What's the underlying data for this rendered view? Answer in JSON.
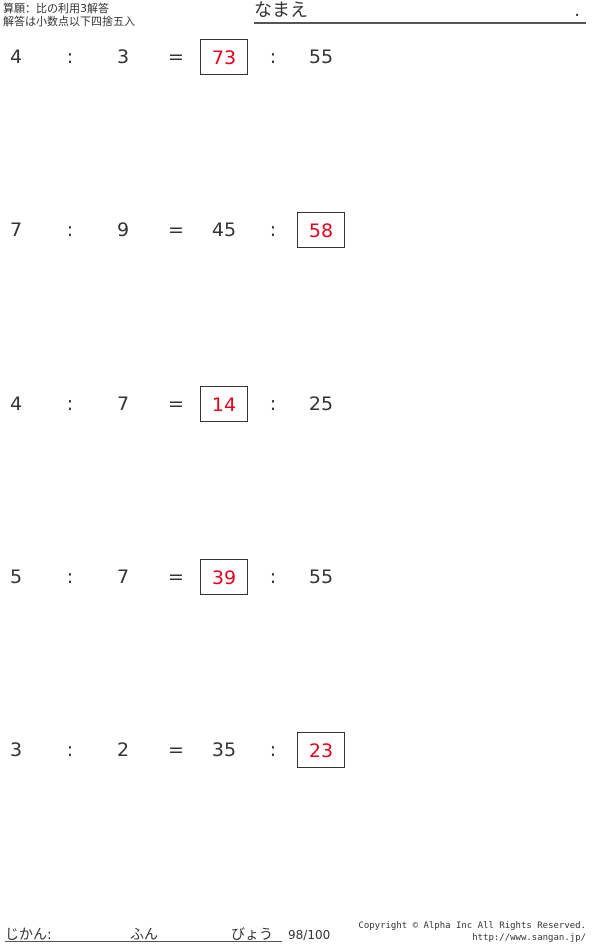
{
  "header": {
    "title": "算願：比の利用3解答",
    "note": "解答は小数点以下四捨五入",
    "name_label": "なまえ",
    "name_end": "."
  },
  "problems": [
    {
      "a": "4",
      "b": "3",
      "c": "73",
      "d": "55",
      "answer": "c"
    },
    {
      "a": "7",
      "b": "9",
      "c": "45",
      "d": "58",
      "answer": "d"
    },
    {
      "a": "4",
      "b": "7",
      "c": "14",
      "d": "25",
      "answer": "c"
    },
    {
      "a": "5",
      "b": "7",
      "c": "39",
      "d": "55",
      "answer": "c"
    },
    {
      "a": "3",
      "b": "2",
      "c": "35",
      "d": "23",
      "answer": "d"
    }
  ],
  "symbols": {
    "colon": ":",
    "equals": "="
  },
  "footer": {
    "time_label": "じかん:",
    "minutes_label": "ふん",
    "seconds_label": "びょう",
    "page": "98/100",
    "copyright": "Copyright © Alpha Inc All Rights Reserved.",
    "url": "http://www.sangan.jp/"
  },
  "colors": {
    "answer": "#e8001c"
  }
}
